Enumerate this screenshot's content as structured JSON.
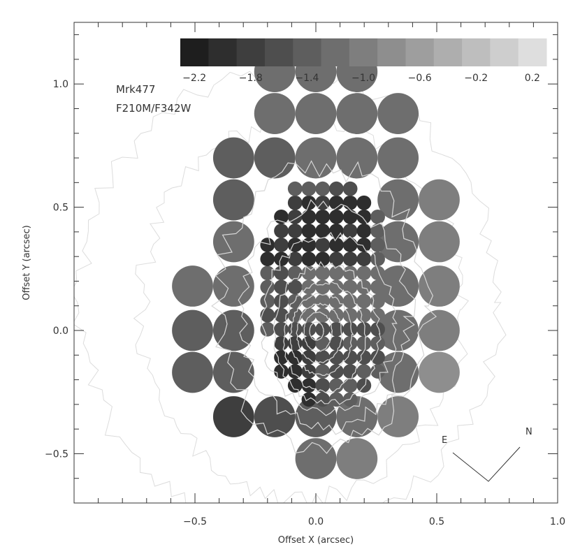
{
  "chart_data": {
    "type": "scatter",
    "object_name": "Mrk477",
    "filter_ratio": "F210M/F342W",
    "xlabel": "Offset X (arcsec)",
    "ylabel": "Offset Y (arcsec)",
    "xlim": [
      -1.0,
      1.0
    ],
    "ylim": [
      -0.7,
      1.25
    ],
    "x_ticks": [
      -0.5,
      0.0,
      0.5,
      1.0
    ],
    "x_tick_labels": [
      "−0.5",
      "0.0",
      "0.5",
      "1.0"
    ],
    "y_ticks": [
      -0.5,
      0.0,
      0.5,
      1.0
    ],
    "y_tick_labels": [
      "−0.5",
      "0.0",
      "0.5",
      "1.0"
    ],
    "grid": false,
    "colorbar": {
      "range": [
        -2.3,
        0.3
      ],
      "tick_values": [
        -2.2,
        -1.8,
        -1.4,
        -1.0,
        -0.6,
        -0.2,
        0.2
      ],
      "tick_labels": [
        "−2.2",
        "−1.8",
        "−1.4",
        "−1.0",
        "−0.6",
        "−0.2",
        "0.2"
      ],
      "dark_color": "#1e1e1e",
      "light_color": "#dedede",
      "levels": 13
    },
    "compass": {
      "east_label": "E",
      "north_label": "N"
    },
    "contour_center": [
      0.0,
      0.0
    ],
    "large_aperture_diameter": 0.17,
    "small_aperture_diameter": 0.06,
    "large_apertures": [
      {
        "x": -0.17,
        "y": 1.05,
        "v": -1.2
      },
      {
        "x": 0.0,
        "y": 1.05,
        "v": -1.25
      },
      {
        "x": 0.17,
        "y": 1.05,
        "v": -1.2
      },
      {
        "x": -0.17,
        "y": 0.88,
        "v": -1.2
      },
      {
        "x": 0.0,
        "y": 0.88,
        "v": -1.2
      },
      {
        "x": 0.17,
        "y": 0.88,
        "v": -1.2
      },
      {
        "x": 0.34,
        "y": 0.88,
        "v": -1.2
      },
      {
        "x": -0.34,
        "y": 0.7,
        "v": -1.35
      },
      {
        "x": -0.17,
        "y": 0.7,
        "v": -1.35
      },
      {
        "x": 0.0,
        "y": 0.7,
        "v": -1.3
      },
      {
        "x": 0.17,
        "y": 0.7,
        "v": -1.25
      },
      {
        "x": 0.34,
        "y": 0.7,
        "v": -1.3
      },
      {
        "x": -0.34,
        "y": 0.53,
        "v": -1.35
      },
      {
        "x": 0.34,
        "y": 0.53,
        "v": -1.3
      },
      {
        "x": 0.51,
        "y": 0.53,
        "v": -1.05
      },
      {
        "x": -0.34,
        "y": 0.36,
        "v": -1.3
      },
      {
        "x": 0.34,
        "y": 0.36,
        "v": -1.3
      },
      {
        "x": 0.51,
        "y": 0.36,
        "v": -1.05
      },
      {
        "x": -0.51,
        "y": 0.18,
        "v": -1.3
      },
      {
        "x": -0.34,
        "y": 0.18,
        "v": -1.3
      },
      {
        "x": 0.34,
        "y": 0.18,
        "v": -1.3
      },
      {
        "x": 0.51,
        "y": 0.18,
        "v": -1.1
      },
      {
        "x": -0.51,
        "y": 0.0,
        "v": -1.35
      },
      {
        "x": -0.34,
        "y": 0.0,
        "v": -1.35
      },
      {
        "x": 0.34,
        "y": 0.0,
        "v": -1.25
      },
      {
        "x": 0.51,
        "y": 0.0,
        "v": -1.05
      },
      {
        "x": -0.51,
        "y": -0.17,
        "v": -1.45
      },
      {
        "x": -0.34,
        "y": -0.17,
        "v": -1.45
      },
      {
        "x": 0.34,
        "y": -0.17,
        "v": -1.2
      },
      {
        "x": 0.51,
        "y": -0.17,
        "v": -0.75
      },
      {
        "x": -0.34,
        "y": -0.35,
        "v": -1.8
      },
      {
        "x": -0.17,
        "y": -0.35,
        "v": -1.6
      },
      {
        "x": 0.0,
        "y": -0.35,
        "v": -1.35
      },
      {
        "x": 0.17,
        "y": -0.35,
        "v": -1.25
      },
      {
        "x": 0.34,
        "y": -0.35,
        "v": -1.0
      },
      {
        "x": 0.0,
        "y": -0.52,
        "v": -1.3
      },
      {
        "x": 0.17,
        "y": -0.52,
        "v": -1.05
      }
    ],
    "small_aperture_region": {
      "x_range": [
        -0.2,
        0.3
      ],
      "y_range": [
        -0.28,
        0.62
      ],
      "v_min": -2.1,
      "v_max": -1.0
    }
  }
}
